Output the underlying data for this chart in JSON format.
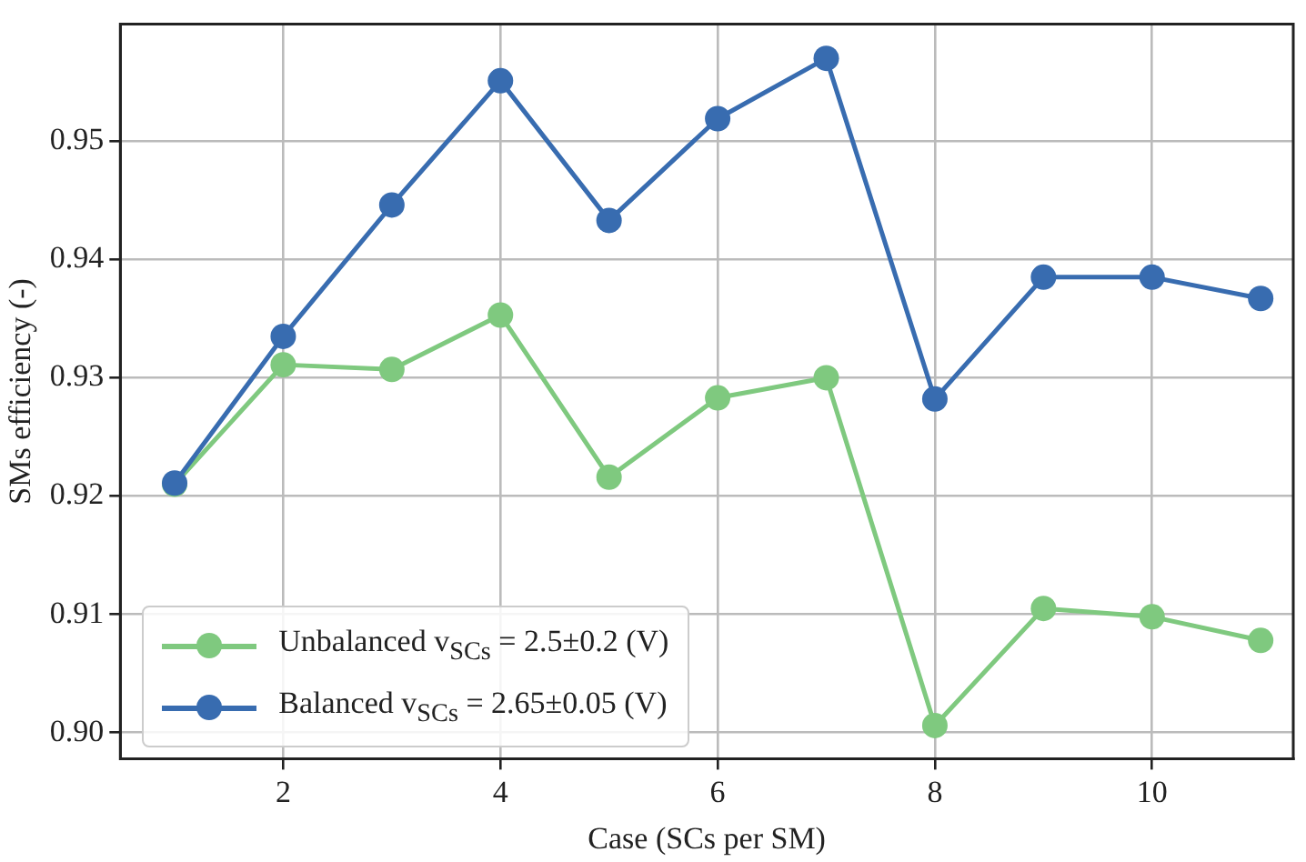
{
  "chart_data": {
    "type": "line",
    "xlabel": "Case (SCs per SM)",
    "ylabel": "SMs efficiency (-)",
    "x": [
      1,
      2,
      3,
      4,
      5,
      6,
      7,
      8,
      9,
      10,
      11
    ],
    "xlim": [
      0.5,
      11.3
    ],
    "xticks": [
      2,
      4,
      6,
      8,
      10
    ],
    "ylim": [
      0.8978,
      0.9599
    ],
    "yticks": [
      {
        "value": 0.9,
        "label": "0.90"
      },
      0.91,
      0.92,
      0.93,
      0.94,
      0.95
    ],
    "grid": true,
    "legend": "bottom left",
    "marker": "circle",
    "line_style": "solid",
    "series": [
      {
        "name": "Unbalanced v$_{SCs}$ = 2.5±0.2 (V)",
        "color": "#7fc97f",
        "values": [
          0.921,
          0.9311,
          0.9307,
          0.9353,
          0.9216,
          0.9283,
          0.93,
          0.9006,
          0.9105,
          0.9098,
          0.9078
        ]
      },
      {
        "name": "Balanced v$_{SCs}$ = 2.65±0.05 (V)",
        "color": "#386cb0",
        "values": [
          0.9211,
          0.9335,
          0.9446,
          0.9551,
          0.9433,
          0.9519,
          0.957,
          0.9282,
          0.9385,
          0.9385,
          0.9367
        ]
      }
    ]
  }
}
